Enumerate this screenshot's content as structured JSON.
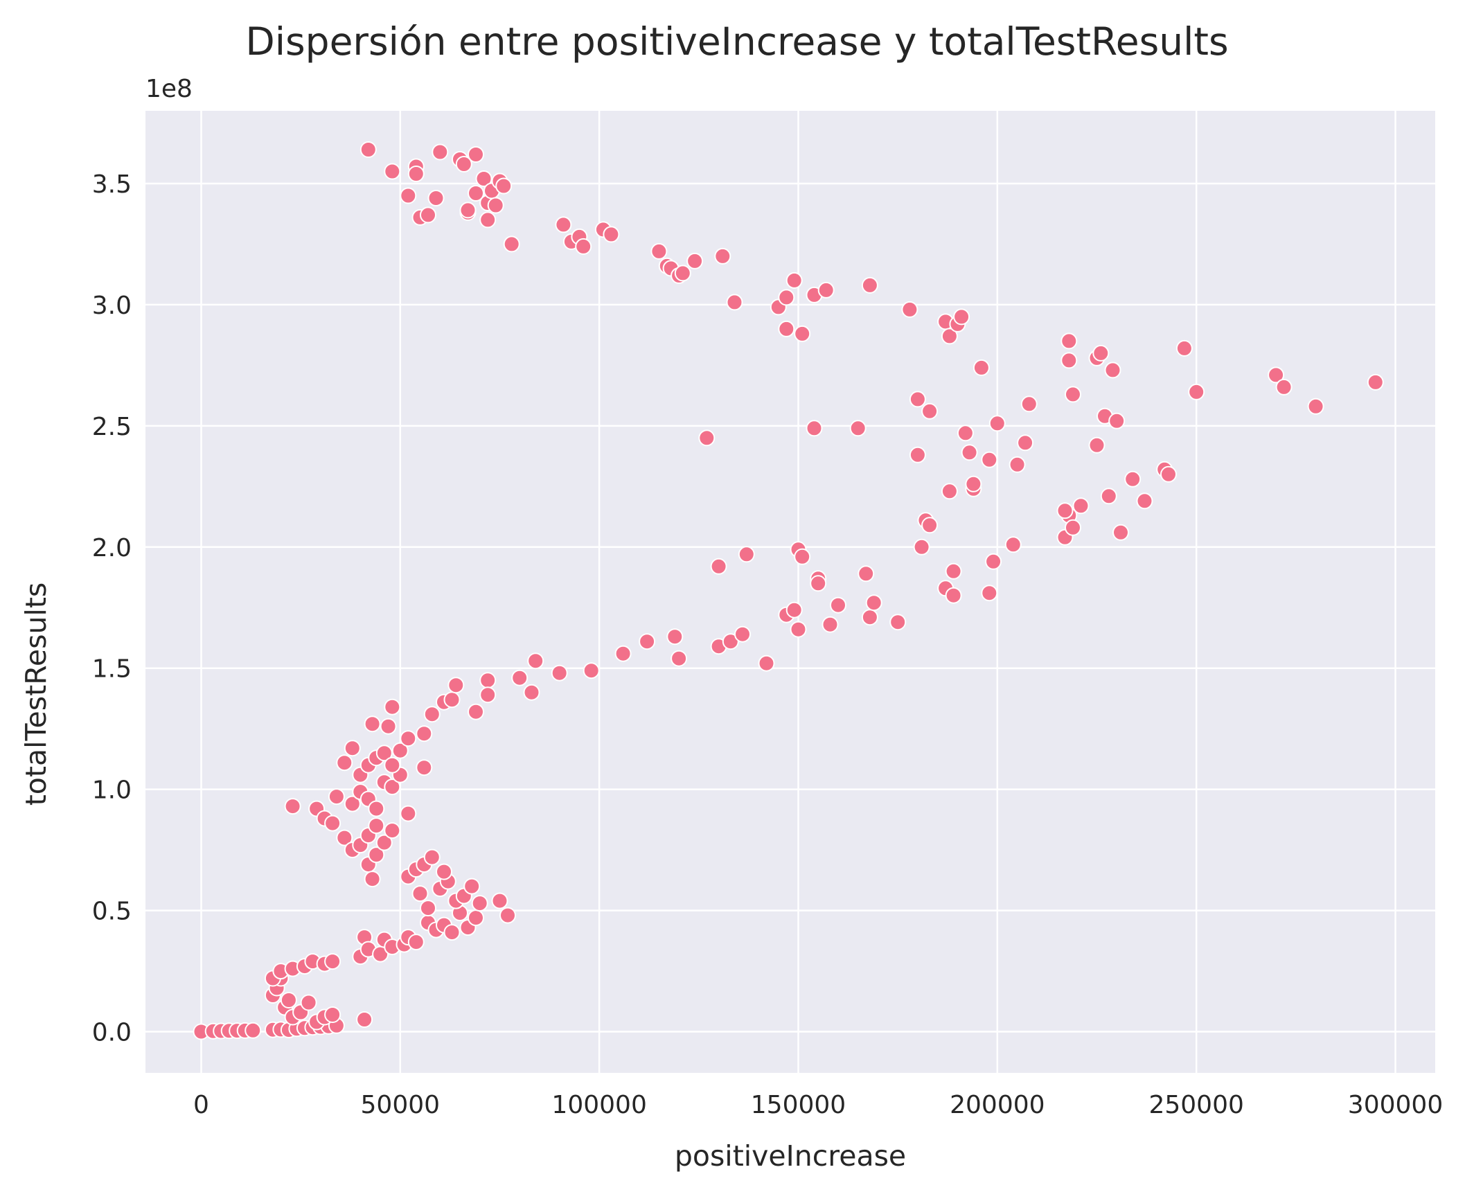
{
  "chart_data": {
    "type": "scatter",
    "title": "Dispersión entre positiveIncrease y totalTestResults",
    "xlabel": "positiveIncrease",
    "ylabel": "totalTestResults",
    "y_offset_label": "1e8",
    "xlim": [
      -14000,
      310000
    ],
    "ylim": [
      -17000000,
      380000000
    ],
    "xticks": [
      0,
      50000,
      100000,
      150000,
      200000,
      250000,
      300000
    ],
    "xtick_labels": [
      "0",
      "50000",
      "100000",
      "150000",
      "200000",
      "250000",
      "300000"
    ],
    "yticks": [
      0,
      50000000,
      100000000,
      150000000,
      200000000,
      250000000,
      300000000,
      350000000
    ],
    "ytick_labels": [
      "0.0",
      "0.5",
      "1.0",
      "1.5",
      "2.0",
      "2.5",
      "3.0",
      "3.5"
    ],
    "grid": true,
    "marker_color": "#f2708a",
    "background_color": "#eaeaf2",
    "series": [
      {
        "points": [
          [
            0,
            0
          ],
          [
            3000,
            200000
          ],
          [
            5000,
            300000
          ],
          [
            7000,
            350000
          ],
          [
            9000,
            400000
          ],
          [
            11000,
            450000
          ],
          [
            13000,
            500000
          ],
          [
            18000,
            800000
          ],
          [
            20000,
            900000
          ],
          [
            22000,
            700000
          ],
          [
            24000,
            1200000
          ],
          [
            26000,
            1500000
          ],
          [
            28000,
            1800000
          ],
          [
            30000,
            2000000
          ],
          [
            32000,
            2200000
          ],
          [
            34000,
            2500000
          ],
          [
            41000,
            5000000
          ],
          [
            18000,
            15000000
          ],
          [
            19000,
            18000000
          ],
          [
            20000,
            22000000
          ],
          [
            21000,
            10000000
          ],
          [
            22000,
            13000000
          ],
          [
            23000,
            6000000
          ],
          [
            25000,
            8000000
          ],
          [
            27000,
            12000000
          ],
          [
            29000,
            4000000
          ],
          [
            31000,
            6000000
          ],
          [
            33000,
            7000000
          ],
          [
            18000,
            22000000
          ],
          [
            20000,
            25000000
          ],
          [
            23000,
            26000000
          ],
          [
            26000,
            27000000
          ],
          [
            28000,
            29000000
          ],
          [
            31000,
            28000000
          ],
          [
            33000,
            29000000
          ],
          [
            40000,
            31000000
          ],
          [
            41000,
            39000000
          ],
          [
            42000,
            34000000
          ],
          [
            45000,
            32000000
          ],
          [
            46000,
            38000000
          ],
          [
            48000,
            35000000
          ],
          [
            51000,
            36000000
          ],
          [
            52000,
            39000000
          ],
          [
            54000,
            37000000
          ],
          [
            57000,
            45000000
          ],
          [
            59000,
            42000000
          ],
          [
            61000,
            44000000
          ],
          [
            63000,
            41000000
          ],
          [
            65000,
            49000000
          ],
          [
            67000,
            43000000
          ],
          [
            69000,
            47000000
          ],
          [
            70000,
            53000000
          ],
          [
            75000,
            54000000
          ],
          [
            77000,
            48000000
          ],
          [
            55000,
            57000000
          ],
          [
            57000,
            51000000
          ],
          [
            60000,
            59000000
          ],
          [
            62000,
            62000000
          ],
          [
            64000,
            54000000
          ],
          [
            66000,
            56000000
          ],
          [
            68000,
            60000000
          ],
          [
            52000,
            64000000
          ],
          [
            54000,
            67000000
          ],
          [
            56000,
            69000000
          ],
          [
            58000,
            72000000
          ],
          [
            61000,
            66000000
          ],
          [
            42000,
            69000000
          ],
          [
            43000,
            63000000
          ],
          [
            44000,
            73000000
          ],
          [
            36000,
            80000000
          ],
          [
            38000,
            75000000
          ],
          [
            40000,
            77000000
          ],
          [
            42000,
            81000000
          ],
          [
            44000,
            85000000
          ],
          [
            46000,
            78000000
          ],
          [
            48000,
            83000000
          ],
          [
            52000,
            90000000
          ],
          [
            23000,
            93000000
          ],
          [
            29000,
            92000000
          ],
          [
            31000,
            88000000
          ],
          [
            33000,
            86000000
          ],
          [
            34000,
            97000000
          ],
          [
            38000,
            94000000
          ],
          [
            40000,
            99000000
          ],
          [
            42000,
            96000000
          ],
          [
            44000,
            92000000
          ],
          [
            46000,
            103000000
          ],
          [
            48000,
            101000000
          ],
          [
            50000,
            106000000
          ],
          [
            36000,
            111000000
          ],
          [
            38000,
            117000000
          ],
          [
            40000,
            106000000
          ],
          [
            42000,
            110000000
          ],
          [
            44000,
            113000000
          ],
          [
            46000,
            115000000
          ],
          [
            48000,
            110000000
          ],
          [
            50000,
            116000000
          ],
          [
            52000,
            121000000
          ],
          [
            56000,
            109000000
          ],
          [
            43000,
            127000000
          ],
          [
            47000,
            126000000
          ],
          [
            48000,
            134000000
          ],
          [
            56000,
            123000000
          ],
          [
            58000,
            131000000
          ],
          [
            61000,
            136000000
          ],
          [
            63000,
            137000000
          ],
          [
            64000,
            143000000
          ],
          [
            69000,
            132000000
          ],
          [
            72000,
            145000000
          ],
          [
            72000,
            139000000
          ],
          [
            80000,
            146000000
          ],
          [
            83000,
            140000000
          ],
          [
            84000,
            153000000
          ],
          [
            90000,
            148000000
          ],
          [
            98000,
            149000000
          ],
          [
            106000,
            156000000
          ],
          [
            112000,
            161000000
          ],
          [
            119000,
            163000000
          ],
          [
            120000,
            154000000
          ],
          [
            130000,
            159000000
          ],
          [
            133000,
            161000000
          ],
          [
            136000,
            164000000
          ],
          [
            142000,
            152000000
          ],
          [
            130000,
            192000000
          ],
          [
            137000,
            197000000
          ],
          [
            147000,
            172000000
          ],
          [
            149000,
            174000000
          ],
          [
            150000,
            166000000
          ],
          [
            150000,
            199000000
          ],
          [
            151000,
            196000000
          ],
          [
            155000,
            187000000
          ],
          [
            155000,
            185000000
          ],
          [
            158000,
            168000000
          ],
          [
            160000,
            176000000
          ],
          [
            167000,
            189000000
          ],
          [
            168000,
            171000000
          ],
          [
            169000,
            177000000
          ],
          [
            175000,
            169000000
          ],
          [
            180000,
            238000000
          ],
          [
            181000,
            200000000
          ],
          [
            182000,
            211000000
          ],
          [
            183000,
            209000000
          ],
          [
            187000,
            183000000
          ],
          [
            188000,
            223000000
          ],
          [
            189000,
            180000000
          ],
          [
            189000,
            190000000
          ],
          [
            192000,
            247000000
          ],
          [
            193000,
            239000000
          ],
          [
            194000,
            224000000
          ],
          [
            194000,
            226000000
          ],
          [
            198000,
            236000000
          ],
          [
            198000,
            181000000
          ],
          [
            199000,
            194000000
          ],
          [
            200000,
            251000000
          ],
          [
            204000,
            201000000
          ],
          [
            205000,
            234000000
          ],
          [
            207000,
            243000000
          ],
          [
            208000,
            259000000
          ],
          [
            180000,
            261000000
          ],
          [
            183000,
            256000000
          ],
          [
            217000,
            204000000
          ],
          [
            218000,
            213000000
          ],
          [
            219000,
            208000000
          ],
          [
            221000,
            217000000
          ],
          [
            217000,
            215000000
          ],
          [
            225000,
            242000000
          ],
          [
            227000,
            254000000
          ],
          [
            228000,
            221000000
          ],
          [
            230000,
            252000000
          ],
          [
            231000,
            206000000
          ],
          [
            234000,
            228000000
          ],
          [
            237000,
            219000000
          ],
          [
            242000,
            232000000
          ],
          [
            243000,
            230000000
          ],
          [
            219000,
            263000000
          ],
          [
            127000,
            245000000
          ],
          [
            154000,
            249000000
          ],
          [
            165000,
            249000000
          ],
          [
            218000,
            285000000
          ],
          [
            218000,
            277000000
          ],
          [
            225000,
            278000000
          ],
          [
            226000,
            280000000
          ],
          [
            229000,
            273000000
          ],
          [
            247000,
            282000000
          ],
          [
            250000,
            264000000
          ],
          [
            270000,
            271000000
          ],
          [
            272000,
            266000000
          ],
          [
            280000,
            258000000
          ],
          [
            295000,
            268000000
          ],
          [
            196000,
            274000000
          ],
          [
            134000,
            301000000
          ],
          [
            145000,
            299000000
          ],
          [
            147000,
            303000000
          ],
          [
            147000,
            290000000
          ],
          [
            149000,
            310000000
          ],
          [
            151000,
            288000000
          ],
          [
            154000,
            304000000
          ],
          [
            157000,
            306000000
          ],
          [
            168000,
            308000000
          ],
          [
            178000,
            298000000
          ],
          [
            187000,
            293000000
          ],
          [
            188000,
            287000000
          ],
          [
            190000,
            292000000
          ],
          [
            191000,
            295000000
          ],
          [
            115000,
            322000000
          ],
          [
            117000,
            316000000
          ],
          [
            118000,
            315000000
          ],
          [
            120000,
            312000000
          ],
          [
            121000,
            313000000
          ],
          [
            124000,
            318000000
          ],
          [
            131000,
            320000000
          ],
          [
            91000,
            333000000
          ],
          [
            93000,
            326000000
          ],
          [
            95000,
            328000000
          ],
          [
            96000,
            324000000
          ],
          [
            101000,
            331000000
          ],
          [
            103000,
            329000000
          ],
          [
            78000,
            325000000
          ],
          [
            42000,
            364000000
          ],
          [
            48000,
            355000000
          ],
          [
            54000,
            357000000
          ],
          [
            54000,
            354000000
          ],
          [
            52000,
            345000000
          ],
          [
            55000,
            336000000
          ],
          [
            57000,
            337000000
          ],
          [
            59000,
            344000000
          ],
          [
            60000,
            363000000
          ],
          [
            65000,
            360000000
          ],
          [
            66000,
            358000000
          ],
          [
            67000,
            338000000
          ],
          [
            67000,
            339000000
          ],
          [
            69000,
            362000000
          ],
          [
            69000,
            346000000
          ],
          [
            71000,
            352000000
          ],
          [
            72000,
            342000000
          ],
          [
            73000,
            347000000
          ],
          [
            72000,
            335000000
          ],
          [
            74000,
            341000000
          ],
          [
            75000,
            351000000
          ],
          [
            76000,
            349000000
          ]
        ]
      }
    ]
  }
}
